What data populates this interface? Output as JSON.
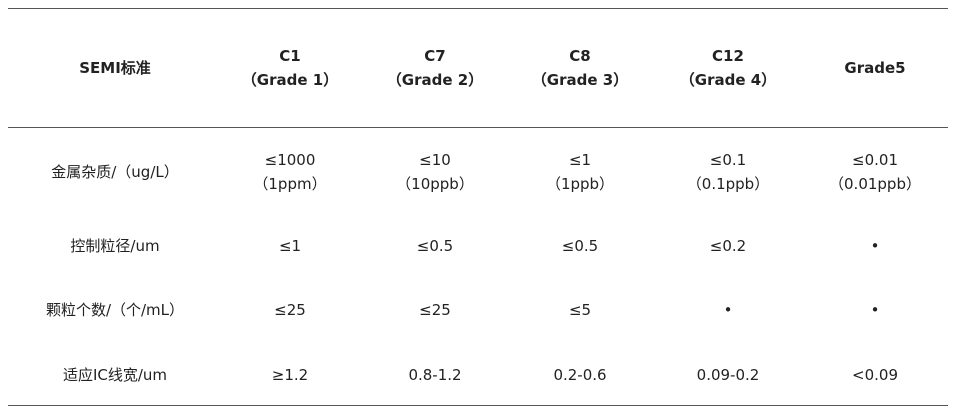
{
  "table": {
    "header": [
      [
        "SEMI标准"
      ],
      [
        "C1",
        "（Grade 1）"
      ],
      [
        "C7",
        "（Grade 2）"
      ],
      [
        "C8",
        "（Grade 3）"
      ],
      [
        "C12",
        "（Grade 4）"
      ],
      [
        "Grade5"
      ]
    ],
    "rows": [
      [
        [
          "金属杂质/（ug/L）"
        ],
        [
          "≤1000",
          "（1ppm）"
        ],
        [
          "≤10",
          "（10ppb）"
        ],
        [
          "≤1",
          "（1ppb）"
        ],
        [
          "≤0.1",
          "（0.1ppb）"
        ],
        [
          "≤0.01",
          "（0.01ppb）"
        ]
      ],
      [
        [
          "控制粒径/um"
        ],
        [
          "≤1"
        ],
        [
          "≤0.5"
        ],
        [
          "≤0.5"
        ],
        [
          "≤0.2"
        ],
        [
          "•"
        ]
      ],
      [
        [
          "颗粒个数/（个/mL）"
        ],
        [
          "≤25"
        ],
        [
          "≤25"
        ],
        [
          "≤5"
        ],
        [
          "•"
        ],
        [
          "•"
        ]
      ],
      [
        [
          "适应IC线宽/um"
        ],
        [
          "≥1.2"
        ],
        [
          "0.8-1.2"
        ],
        [
          "0.2-0.6"
        ],
        [
          "0.09-0.2"
        ],
        [
          "<0.09"
        ]
      ]
    ]
  }
}
